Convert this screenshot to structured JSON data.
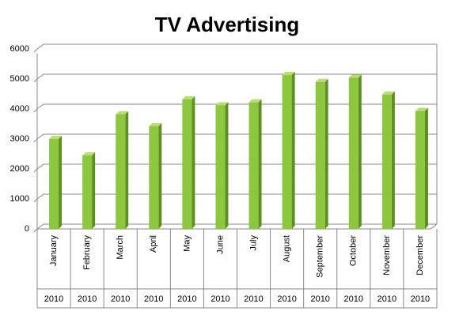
{
  "chart_data": {
    "type": "bar",
    "title": "TV Advertising",
    "categories": [
      "January",
      "February",
      "March",
      "April",
      "May",
      "June",
      "July",
      "August",
      "September",
      "October",
      "November",
      "December"
    ],
    "groups": [
      "2010",
      "2010",
      "2010",
      "2010",
      "2010",
      "2010",
      "2010",
      "2010",
      "2010",
      "2010",
      "2010",
      "2010"
    ],
    "values": [
      3000,
      2450,
      3820,
      3420,
      4320,
      4120,
      4220,
      5130,
      4900,
      5040,
      4480,
      3930
    ],
    "color": "#8dc63f",
    "ylim": [
      0,
      6000
    ],
    "yticks": [
      0,
      1000,
      2000,
      3000,
      4000,
      5000,
      6000
    ],
    "grid": true
  }
}
